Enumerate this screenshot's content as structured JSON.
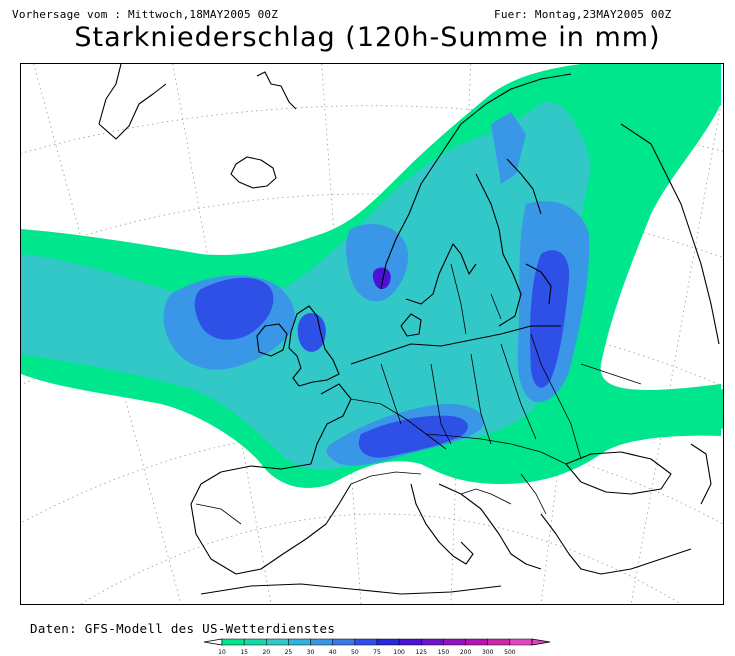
{
  "header": {
    "left_text": "Vorhersage vom : Mittwoch,18MAY2005 00Z",
    "right_text": "Fuer: Montag,23MAY2005 00Z"
  },
  "title": "Starkniederschlag (120h-Summe in mm)",
  "footer": {
    "source_text": "Daten: GFS-Modell des US-Wetterdienstes"
  },
  "legend": {
    "thresholds": [
      "10",
      "15",
      "20",
      "25",
      "30",
      "40",
      "50",
      "75",
      "100",
      "125",
      "150",
      "200",
      "300",
      "500"
    ],
    "colors": [
      "#00e68c",
      "#19d8a8",
      "#33c8c8",
      "#33b2dc",
      "#3a96e6",
      "#3c78e6",
      "#2e50e6",
      "#2a28dc",
      "#4a14d2",
      "#7014c8",
      "#9614be",
      "#b414b4",
      "#cc28a8",
      "#e046c4"
    ]
  },
  "map": {
    "region": "Europe",
    "background_color": "#ffffff",
    "outline_color": "#000000",
    "graticule_style": "dotted"
  }
}
